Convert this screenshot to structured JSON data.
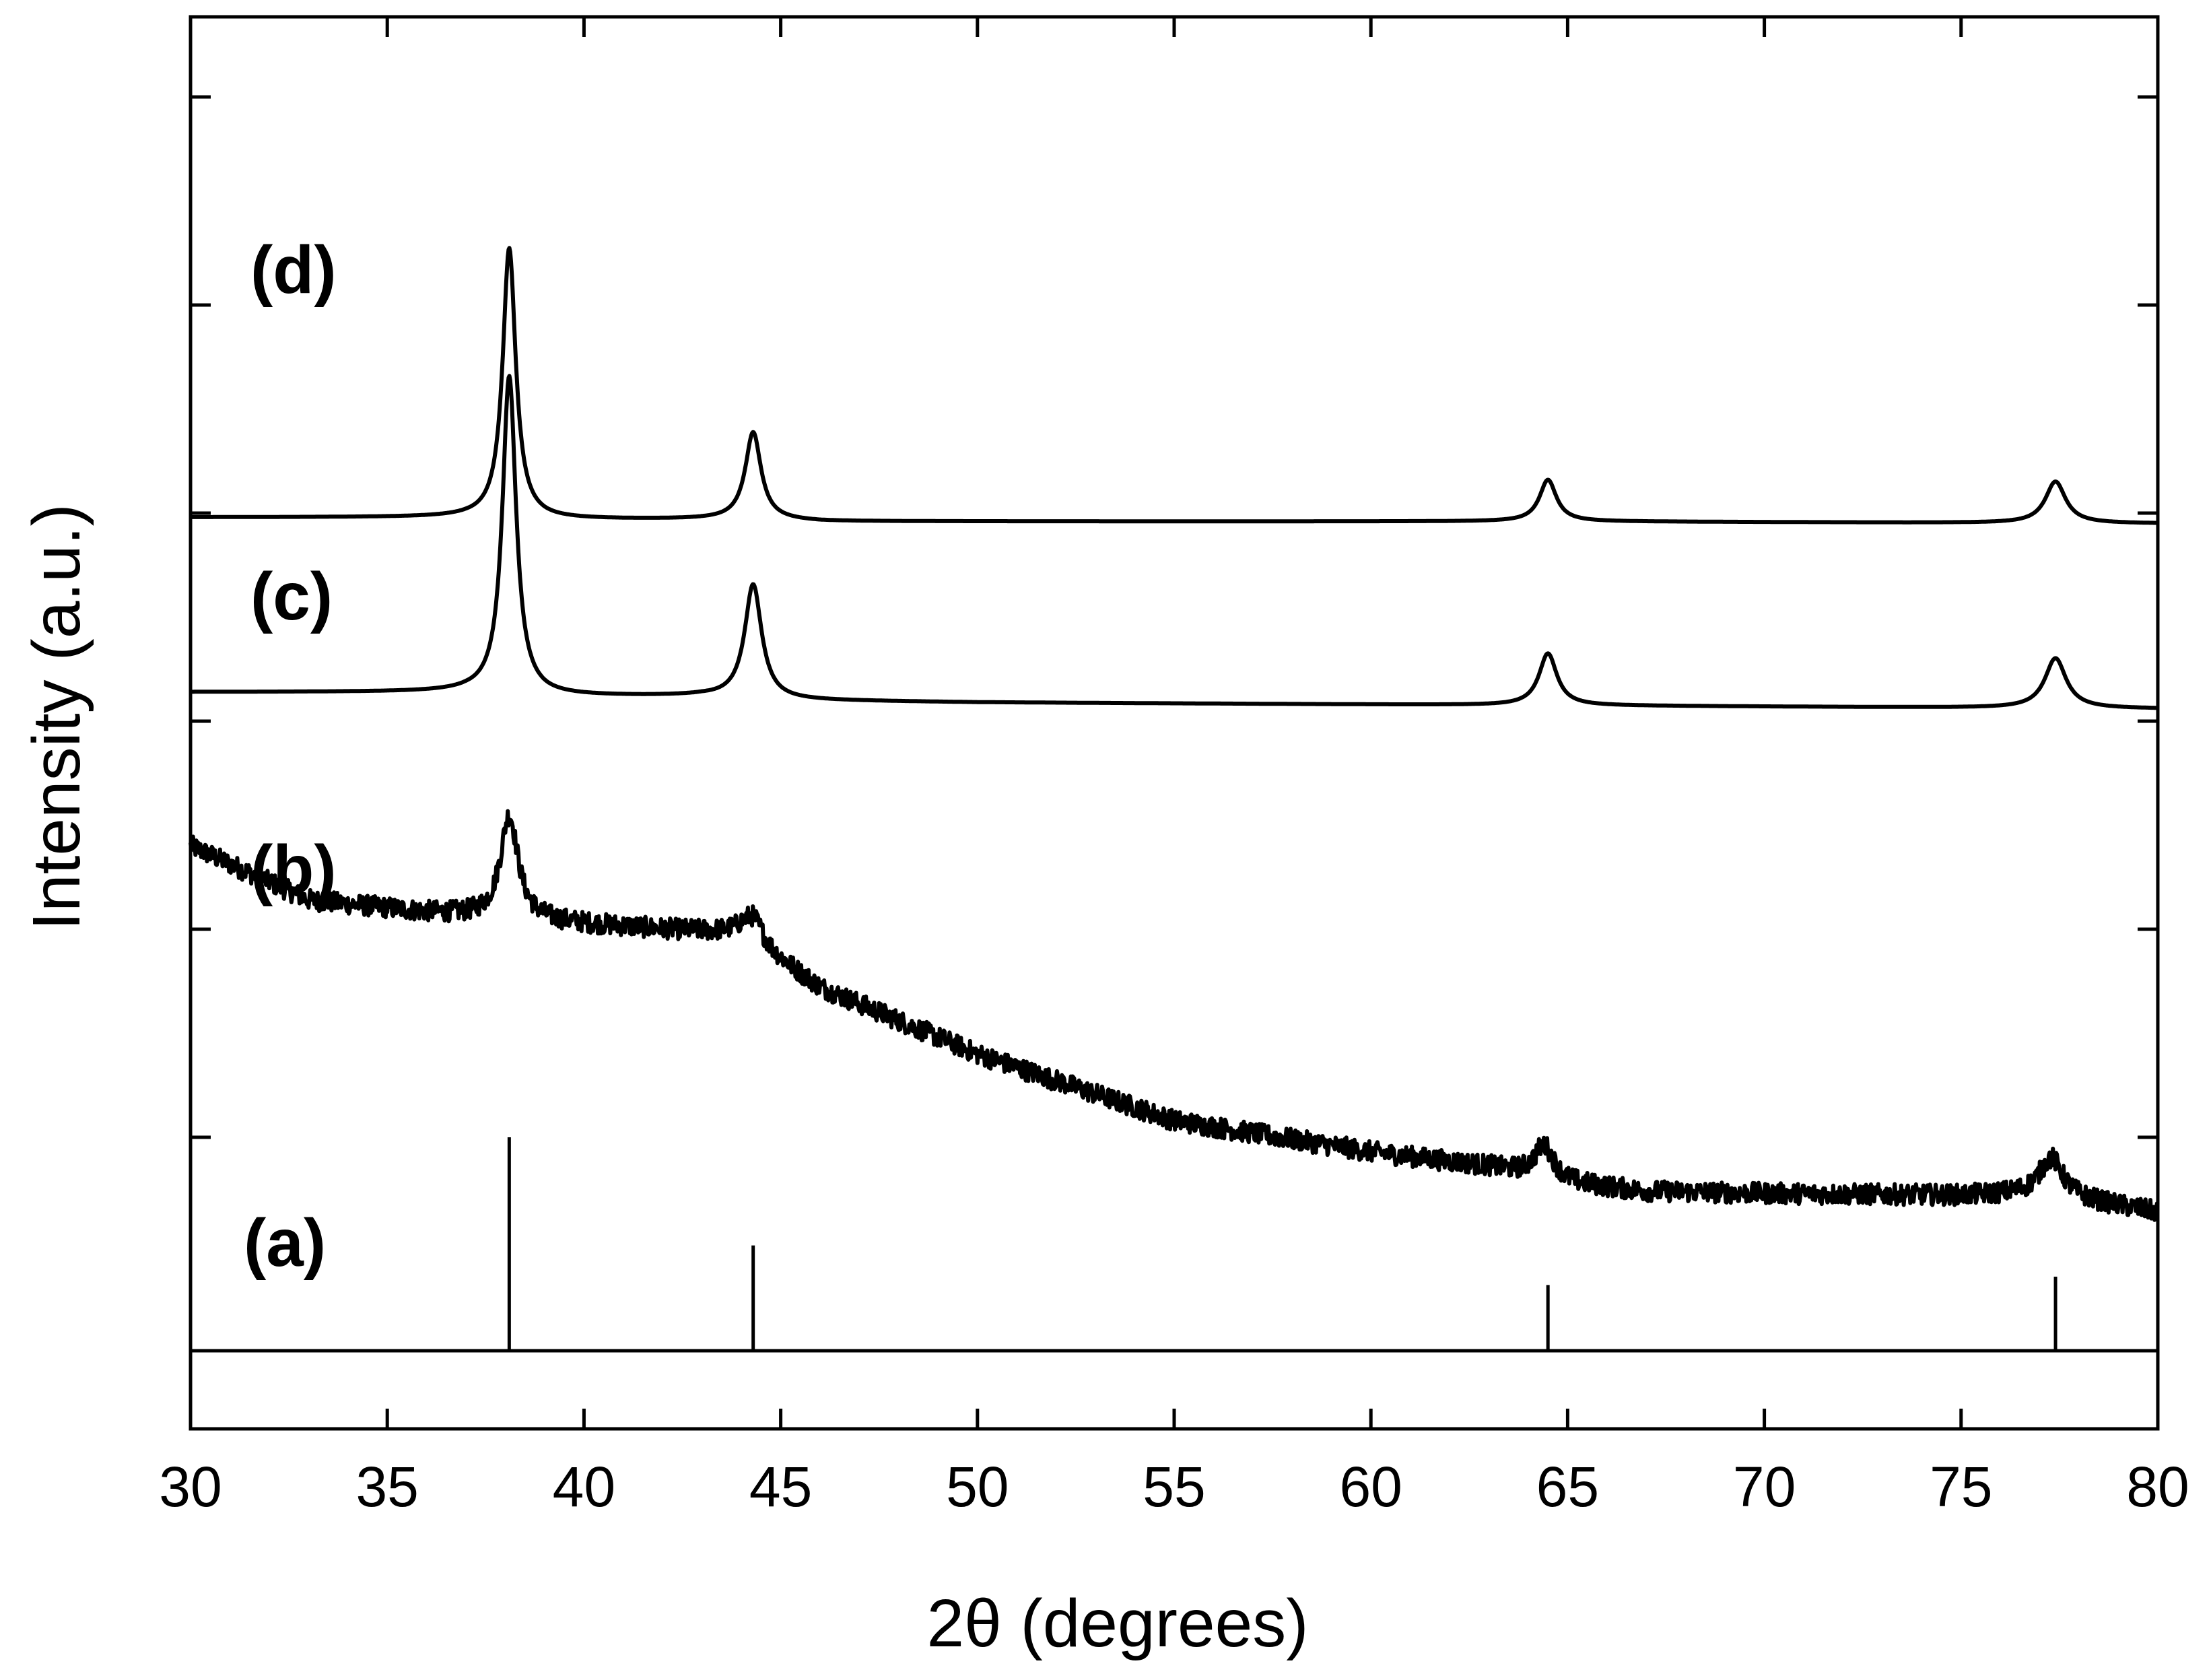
{
  "chart_data": {
    "type": "line",
    "xlabel": "2θ (degrees)",
    "ylabel": "Intensity (a.u.)",
    "xlim": [
      30,
      80
    ],
    "x_ticks": [
      30,
      35,
      40,
      45,
      50,
      55,
      60,
      65,
      70,
      75,
      80
    ],
    "y_ticks": "unlabeled",
    "grid": false,
    "reference_pattern": {
      "label": "(a)",
      "peaks": [
        {
          "x": 38.1,
          "rel_intensity": 100
        },
        {
          "x": 44.3,
          "rel_intensity": 48
        },
        {
          "x": 64.5,
          "rel_intensity": 29
        },
        {
          "x": 77.4,
          "rel_intensity": 33
        }
      ]
    },
    "series": [
      {
        "label": "(b)",
        "noisy": true,
        "background": [
          [
            30,
            2.4
          ],
          [
            33,
            2.14
          ],
          [
            36,
            2.08
          ],
          [
            38,
            2.05
          ],
          [
            42,
            2.0
          ],
          [
            44,
            1.98
          ],
          [
            46,
            1.72
          ],
          [
            50,
            1.4
          ],
          [
            55,
            1.08
          ],
          [
            60,
            0.93
          ],
          [
            63,
            0.86
          ],
          [
            65,
            0.78
          ],
          [
            67,
            0.74
          ],
          [
            70,
            0.73
          ],
          [
            75,
            0.72
          ],
          [
            77,
            0.73
          ],
          [
            80,
            0.64
          ]
        ],
        "peaks": [
          {
            "x": 38.1,
            "height": 0.5,
            "width": 0.55
          },
          {
            "x": 44.3,
            "height": 0.12,
            "width": 0.6
          },
          {
            "x": 64.4,
            "height": 0.16,
            "width": 0.6
          },
          {
            "x": 77.3,
            "height": 0.18,
            "width": 0.7
          }
        ]
      },
      {
        "label": "(c)",
        "noisy": false,
        "background": [
          [
            30,
            3.14
          ],
          [
            37,
            3.14
          ],
          [
            39,
            3.12
          ],
          [
            43,
            3.12
          ],
          [
            45,
            3.1
          ],
          [
            50,
            3.09
          ],
          [
            60,
            3.08
          ],
          [
            70,
            3.07
          ],
          [
            80,
            3.06
          ]
        ],
        "peaks": [
          {
            "x": 38.1,
            "height": 1.53,
            "width": 0.42
          },
          {
            "x": 44.3,
            "height": 0.55,
            "width": 0.52
          },
          {
            "x": 64.5,
            "height": 0.25,
            "width": 0.55
          },
          {
            "x": 77.4,
            "height": 0.24,
            "width": 0.65
          }
        ]
      },
      {
        "label": "(d)",
        "noisy": false,
        "background": [
          [
            30,
            3.98
          ],
          [
            35,
            3.98
          ],
          [
            37,
            3.98
          ],
          [
            39,
            3.97
          ],
          [
            44,
            3.97
          ],
          [
            46,
            3.96
          ],
          [
            55,
            3.96
          ],
          [
            65,
            3.96
          ],
          [
            80,
            3.95
          ]
        ],
        "peaks": [
          {
            "x": 38.1,
            "height": 1.3,
            "width": 0.4
          },
          {
            "x": 44.3,
            "height": 0.42,
            "width": 0.48
          },
          {
            "x": 64.5,
            "height": 0.2,
            "width": 0.52
          },
          {
            "x": 77.4,
            "height": 0.2,
            "width": 0.62
          }
        ]
      }
    ]
  }
}
